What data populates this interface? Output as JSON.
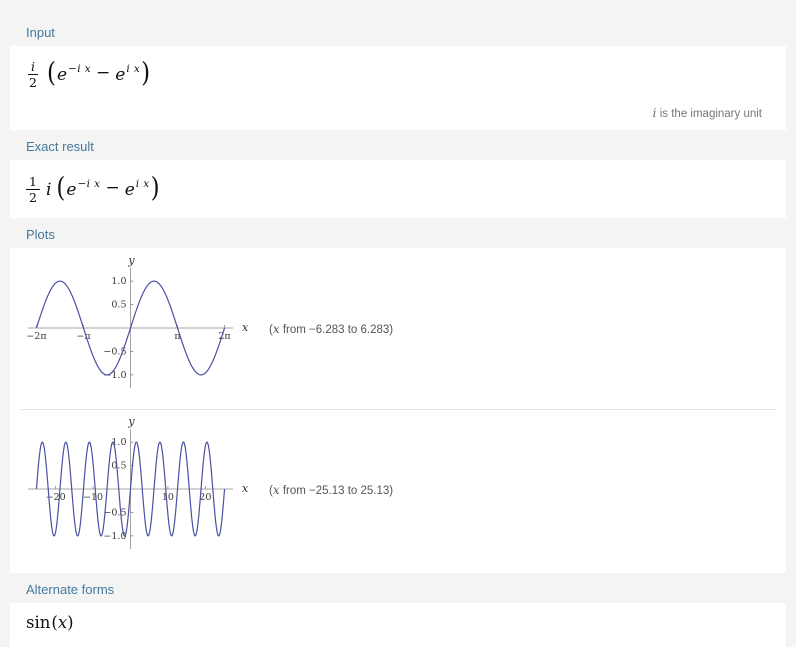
{
  "colors": {
    "page_bg": "#f4f4f4",
    "header_text": "#447a9c",
    "curve": "#4a50a2"
  },
  "sections": {
    "input": {
      "header": "Input",
      "formula": {
        "frac_num": "i",
        "frac_den": "2",
        "lparen": "(",
        "e1": "e",
        "e1_exp": "−i x",
        "minus": "−",
        "e2": "e",
        "e2_exp": "i x",
        "rparen": ")"
      },
      "note": {
        "variable": "i",
        "text": " is the imaginary unit"
      }
    },
    "exact": {
      "header": "Exact result",
      "formula": {
        "frac_num": "1",
        "frac_den": "2",
        "coeff": "i",
        "lparen": "(",
        "e1": "e",
        "e1_exp": "−i x",
        "minus": "−",
        "e2": "e",
        "e2_exp": "i x",
        "rparen": ")"
      }
    },
    "plots": {
      "header": "Plots",
      "captions": [
        {
          "prefix": "(",
          "variable": "x",
          "suffix": " from −6.283 to 6.283)"
        },
        {
          "prefix": "(",
          "variable": "x",
          "suffix": " from −25.13 to 25.13)"
        }
      ]
    },
    "alternate": {
      "header": "Alternate forms",
      "formula": {
        "fn": "sin",
        "lparen": "(",
        "arg": "x",
        "rparen": ")"
      }
    }
  },
  "chart_data": [
    {
      "type": "line",
      "function": "sin(x)",
      "title": "",
      "xlabel": "x",
      "ylabel": "y",
      "x_range": [
        -6.283,
        6.283
      ],
      "y_range": [
        -1,
        1
      ],
      "x_ticks": [
        {
          "value": -6.28318,
          "label": "−2π"
        },
        {
          "value": -3.14159,
          "label": "−π"
        },
        {
          "value": 3.14159,
          "label": "π"
        },
        {
          "value": 6.28318,
          "label": "2π"
        }
      ],
      "y_ticks": [
        {
          "value": 1.0,
          "label": "1.0"
        },
        {
          "value": 0.5,
          "label": "0.5"
        },
        {
          "value": -0.5,
          "label": "−0.5"
        },
        {
          "value": -1.0,
          "label": "−1.0"
        }
      ],
      "line_color": "#4a50a2",
      "grid": false,
      "legend": false
    },
    {
      "type": "line",
      "function": "sin(x)",
      "title": "",
      "xlabel": "x",
      "ylabel": "y",
      "x_range": [
        -25.13,
        25.13
      ],
      "y_range": [
        -1,
        1
      ],
      "x_ticks": [
        {
          "value": -20,
          "label": "−20"
        },
        {
          "value": -10,
          "label": "−10"
        },
        {
          "value": 10,
          "label": "10"
        },
        {
          "value": 20,
          "label": "20"
        }
      ],
      "y_ticks": [
        {
          "value": 1.0,
          "label": "1.0"
        },
        {
          "value": 0.5,
          "label": "0.5"
        },
        {
          "value": -0.5,
          "label": "−0.5"
        },
        {
          "value": -1.0,
          "label": "−1.0"
        }
      ],
      "line_color": "#4a50a2",
      "grid": false,
      "legend": false
    }
  ]
}
